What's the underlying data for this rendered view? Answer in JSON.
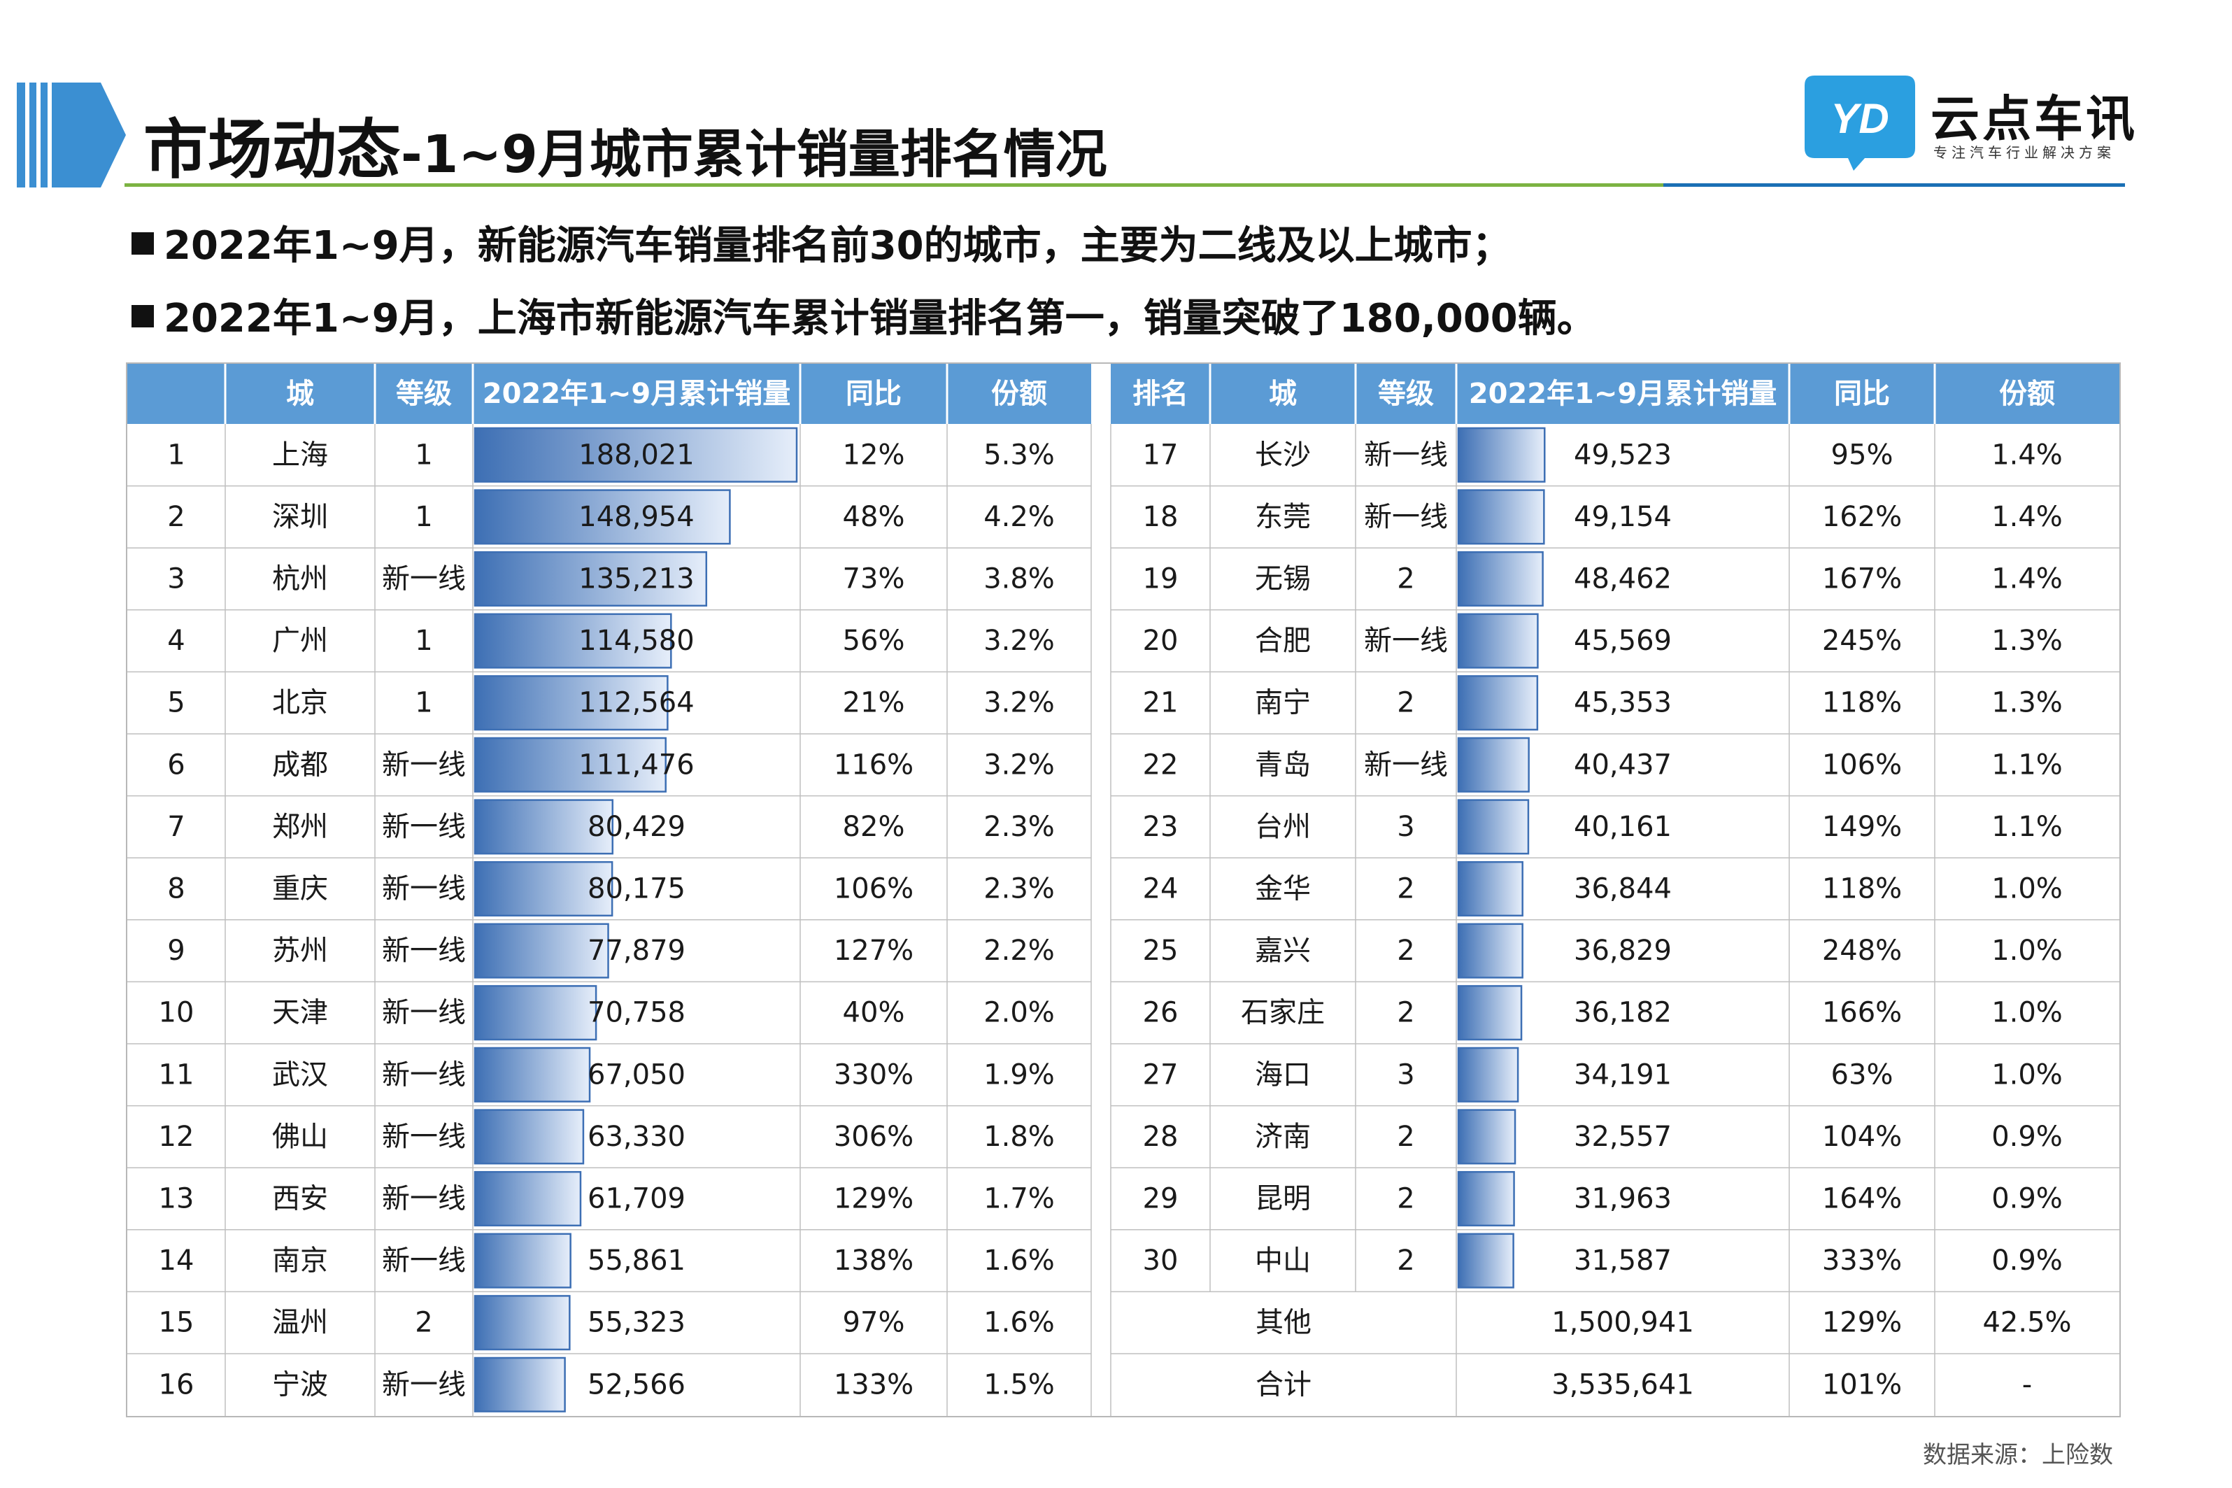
{
  "header": {
    "title_main": "市场动态",
    "title_sub": "-1~9月城市累计销量排名情况"
  },
  "logo": {
    "badge_text": "YD",
    "name": "云点车讯",
    "tagline": "专注汽车行业解决方案"
  },
  "bullets": [
    "2022年1~9月，新能源汽车销量排名前30的城市，主要为二线及以上城市；",
    "2022年1~9月，上海市新能源汽车累计销量排名第一，销量突破了180,000辆。"
  ],
  "table": {
    "left_headers": [
      "",
      "城",
      "等级",
      "2022年1~9月累计销量",
      "同比",
      "份额"
    ],
    "right_headers": [
      "排名",
      "城",
      "等级",
      "2022年1~9月累计销量",
      "同比",
      "份额"
    ],
    "left_rows": [
      {
        "rank": "1",
        "city": "上海",
        "tier": "1",
        "sales": "188,021",
        "value": 188021,
        "yoy": "12%",
        "share": "5.3%"
      },
      {
        "rank": "2",
        "city": "深圳",
        "tier": "1",
        "sales": "148,954",
        "value": 148954,
        "yoy": "48%",
        "share": "4.2%"
      },
      {
        "rank": "3",
        "city": "杭州",
        "tier": "新一线",
        "sales": "135,213",
        "value": 135213,
        "yoy": "73%",
        "share": "3.8%"
      },
      {
        "rank": "4",
        "city": "广州",
        "tier": "1",
        "sales": "114,580",
        "value": 114580,
        "yoy": "56%",
        "share": "3.2%"
      },
      {
        "rank": "5",
        "city": "北京",
        "tier": "1",
        "sales": "112,564",
        "value": 112564,
        "yoy": "21%",
        "share": "3.2%"
      },
      {
        "rank": "6",
        "city": "成都",
        "tier": "新一线",
        "sales": "111,476",
        "value": 111476,
        "yoy": "116%",
        "share": "3.2%"
      },
      {
        "rank": "7",
        "city": "郑州",
        "tier": "新一线",
        "sales": "80,429",
        "value": 80429,
        "yoy": "82%",
        "share": "2.3%"
      },
      {
        "rank": "8",
        "city": "重庆",
        "tier": "新一线",
        "sales": "80,175",
        "value": 80175,
        "yoy": "106%",
        "share": "2.3%"
      },
      {
        "rank": "9",
        "city": "苏州",
        "tier": "新一线",
        "sales": "77,879",
        "value": 77879,
        "yoy": "127%",
        "share": "2.2%"
      },
      {
        "rank": "10",
        "city": "天津",
        "tier": "新一线",
        "sales": "70,758",
        "value": 70758,
        "yoy": "40%",
        "share": "2.0%"
      },
      {
        "rank": "11",
        "city": "武汉",
        "tier": "新一线",
        "sales": "67,050",
        "value": 67050,
        "yoy": "330%",
        "share": "1.9%"
      },
      {
        "rank": "12",
        "city": "佛山",
        "tier": "新一线",
        "sales": "63,330",
        "value": 63330,
        "yoy": "306%",
        "share": "1.8%"
      },
      {
        "rank": "13",
        "city": "西安",
        "tier": "新一线",
        "sales": "61,709",
        "value": 61709,
        "yoy": "129%",
        "share": "1.7%"
      },
      {
        "rank": "14",
        "city": "南京",
        "tier": "新一线",
        "sales": "55,861",
        "value": 55861,
        "yoy": "138%",
        "share": "1.6%"
      },
      {
        "rank": "15",
        "city": "温州",
        "tier": "2",
        "sales": "55,323",
        "value": 55323,
        "yoy": "97%",
        "share": "1.6%"
      },
      {
        "rank": "16",
        "city": "宁波",
        "tier": "新一线",
        "sales": "52,566",
        "value": 52566,
        "yoy": "133%",
        "share": "1.5%"
      }
    ],
    "right_rows": [
      {
        "rank": "17",
        "city": "长沙",
        "tier": "新一线",
        "sales": "49,523",
        "value": 49523,
        "yoy": "95%",
        "share": "1.4%"
      },
      {
        "rank": "18",
        "city": "东莞",
        "tier": "新一线",
        "sales": "49,154",
        "value": 49154,
        "yoy": "162%",
        "share": "1.4%"
      },
      {
        "rank": "19",
        "city": "无锡",
        "tier": "2",
        "sales": "48,462",
        "value": 48462,
        "yoy": "167%",
        "share": "1.4%"
      },
      {
        "rank": "20",
        "city": "合肥",
        "tier": "新一线",
        "sales": "45,569",
        "value": 45569,
        "yoy": "245%",
        "share": "1.3%"
      },
      {
        "rank": "21",
        "city": "南宁",
        "tier": "2",
        "sales": "45,353",
        "value": 45353,
        "yoy": "118%",
        "share": "1.3%"
      },
      {
        "rank": "22",
        "city": "青岛",
        "tier": "新一线",
        "sales": "40,437",
        "value": 40437,
        "yoy": "106%",
        "share": "1.1%"
      },
      {
        "rank": "23",
        "city": "台州",
        "tier": "3",
        "sales": "40,161",
        "value": 40161,
        "yoy": "149%",
        "share": "1.1%"
      },
      {
        "rank": "24",
        "city": "金华",
        "tier": "2",
        "sales": "36,844",
        "value": 36844,
        "yoy": "118%",
        "share": "1.0%"
      },
      {
        "rank": "25",
        "city": "嘉兴",
        "tier": "2",
        "sales": "36,829",
        "value": 36829,
        "yoy": "248%",
        "share": "1.0%"
      },
      {
        "rank": "26",
        "city": "石家庄",
        "tier": "2",
        "sales": "36,182",
        "value": 36182,
        "yoy": "166%",
        "share": "1.0%"
      },
      {
        "rank": "27",
        "city": "海口",
        "tier": "3",
        "sales": "34,191",
        "value": 34191,
        "yoy": "63%",
        "share": "1.0%"
      },
      {
        "rank": "28",
        "city": "济南",
        "tier": "2",
        "sales": "32,557",
        "value": 32557,
        "yoy": "104%",
        "share": "0.9%"
      },
      {
        "rank": "29",
        "city": "昆明",
        "tier": "2",
        "sales": "31,963",
        "value": 31963,
        "yoy": "164%",
        "share": "0.9%"
      },
      {
        "rank": "30",
        "city": "中山",
        "tier": "2",
        "sales": "31,587",
        "value": 31587,
        "yoy": "333%",
        "share": "0.9%"
      },
      {
        "label": "其他",
        "sales": "1,500,941",
        "yoy": "129%",
        "share": "42.5%"
      },
      {
        "label": "合计",
        "sales": "3,535,641",
        "yoy": "101%",
        "share": "-"
      }
    ],
    "bar_max_value": 188021
  },
  "source": "数据来源：上险数",
  "colors": {
    "header_bg": "#5b9bd5",
    "header_text": "#ffffff",
    "bar_dark": "#3d6fb4",
    "bar_light": "#e6eefa",
    "grid": "#bfbfbf",
    "rule_green": "#7cb342",
    "rule_blue": "#1a6fb5"
  }
}
